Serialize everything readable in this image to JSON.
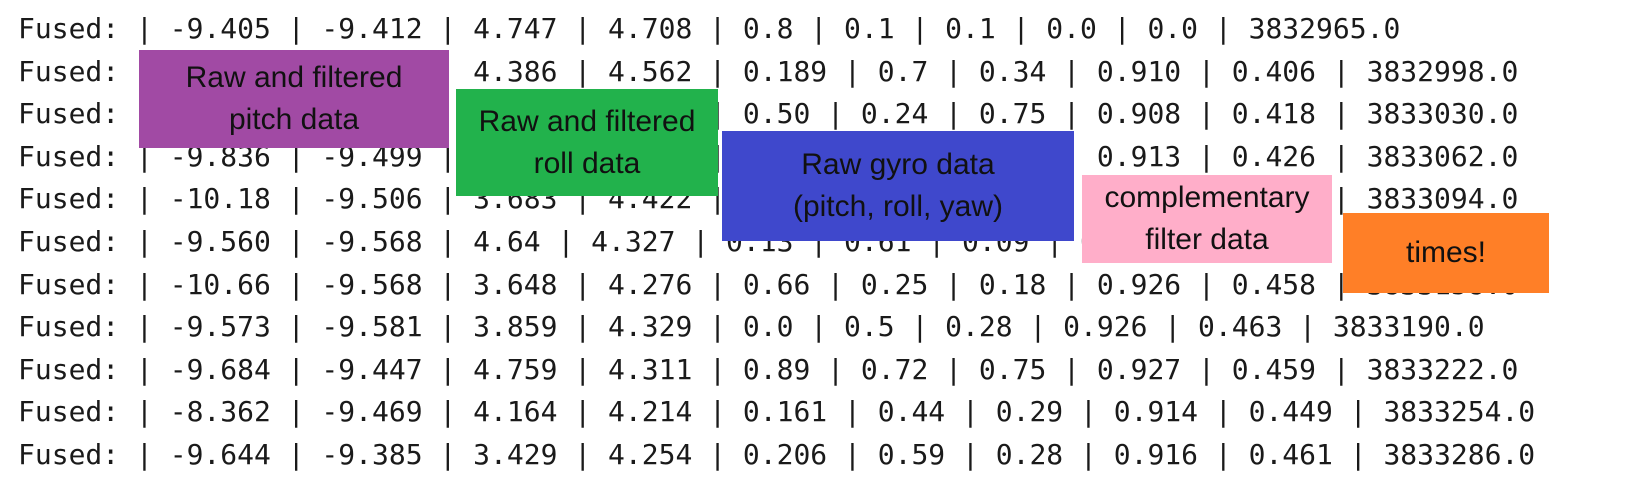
{
  "console": {
    "lines": [
      "Fused: | -9.405 | -9.412 | 4.747 | 4.708 | 0.8 | 0.1 | 0.1 | 0.0 | 0.0 | 3832965.0",
      "Fused: | -9.521 | -9.423 | 4.386 | 4.562 | 0.189 | 0.7 | 0.34 | 0.910 | 0.406 | 3832998.0",
      "Fused: | -9.606 | -9.461 | 4.412 | 4.511 | 0.50 | 0.24 | 0.75 | 0.908 | 0.418 | 3833030.0",
      "Fused: | -9.836 | -9.499 | 4.107 | 4.459 | 0.31 | 0.16 | 0.22 | 0.913 | 0.426 | 3833062.0",
      "Fused: | -10.18 | -9.506 | 3.683 | 4.422 | 0.47 | 0.38 | 0.11 | 0.919 | 0.437 | 3833094.0",
      "Fused: | -9.560 | -9.568 | 4.64 | 4.327 | 0.13 | 0.61 | 0.09 | 0.921 | 0.447 | 3833126.0",
      "Fused: | -10.66 | -9.568 | 3.648 | 4.276 | 0.66 | 0.25 | 0.18 | 0.926 | 0.458 | 3833158.0",
      "Fused: | -9.573 | -9.581 | 3.859 | 4.329 | 0.0 | 0.5 | 0.28 | 0.926 | 0.463 | 3833190.0",
      "Fused: | -9.684 | -9.447 | 4.759 | 4.311 | 0.89 | 0.72 | 0.75 | 0.927 | 0.459 | 3833222.0",
      "Fused: | -8.362 | -9.469 | 4.164 | 4.214 | 0.161 | 0.44 | 0.29 | 0.914 | 0.449 | 3833254.0",
      "Fused: | -9.644 | -9.385 | 3.429 | 4.254 | 0.206 | 0.59 | 0.28 | 0.916 | 0.461 | 3833286.0"
    ]
  },
  "callouts": [
    {
      "id": "pitch",
      "text": "Raw and filtered\npitch data",
      "color": "#a14aa4"
    },
    {
      "id": "roll",
      "text": "Raw and filtered\nroll data",
      "color": "#22b24c"
    },
    {
      "id": "gyro",
      "text": "Raw gyro data\n(pitch, roll, yaw)",
      "color": "#3f48cc"
    },
    {
      "id": "complementary",
      "text": "complementary\nfilter data",
      "color": "#ffaec9"
    },
    {
      "id": "times",
      "text": "times!",
      "color": "#ff7f27"
    }
  ]
}
